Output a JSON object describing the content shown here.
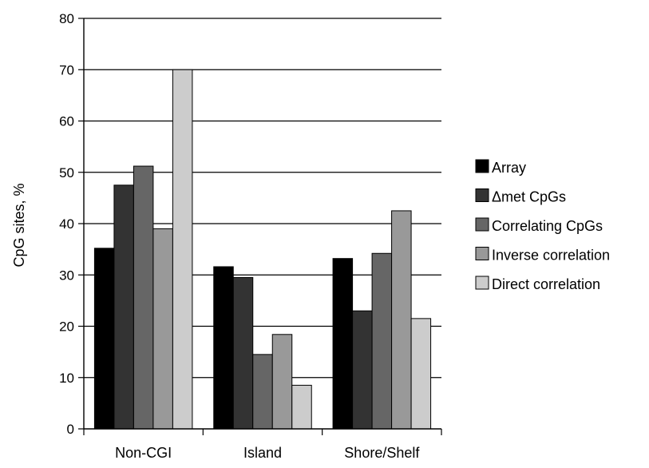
{
  "chart_data": {
    "type": "bar",
    "title": "",
    "xlabel": "",
    "ylabel": "CpG sites, %",
    "ylim": [
      0,
      80
    ],
    "yticks": [
      0,
      10,
      20,
      30,
      40,
      50,
      60,
      70,
      80
    ],
    "grid": true,
    "legend_position": "right",
    "categories": [
      "Non-CGI",
      "Island",
      "Shore/Shelf"
    ],
    "series": [
      {
        "name": "Array",
        "color": "#000000",
        "values": [
          35.2,
          31.6,
          33.2
        ]
      },
      {
        "name": "Δmet CpGs",
        "color": "#333333",
        "values": [
          47.5,
          29.5,
          23.0
        ]
      },
      {
        "name": "Correlating CpGs",
        "color": "#666666",
        "values": [
          51.2,
          14.5,
          34.2
        ]
      },
      {
        "name": "Inverse correlation",
        "color": "#999999",
        "values": [
          39.0,
          18.4,
          42.5
        ]
      },
      {
        "name": "Direct correlation",
        "color": "#cccccc",
        "values": [
          70.0,
          8.5,
          21.5
        ]
      }
    ]
  }
}
